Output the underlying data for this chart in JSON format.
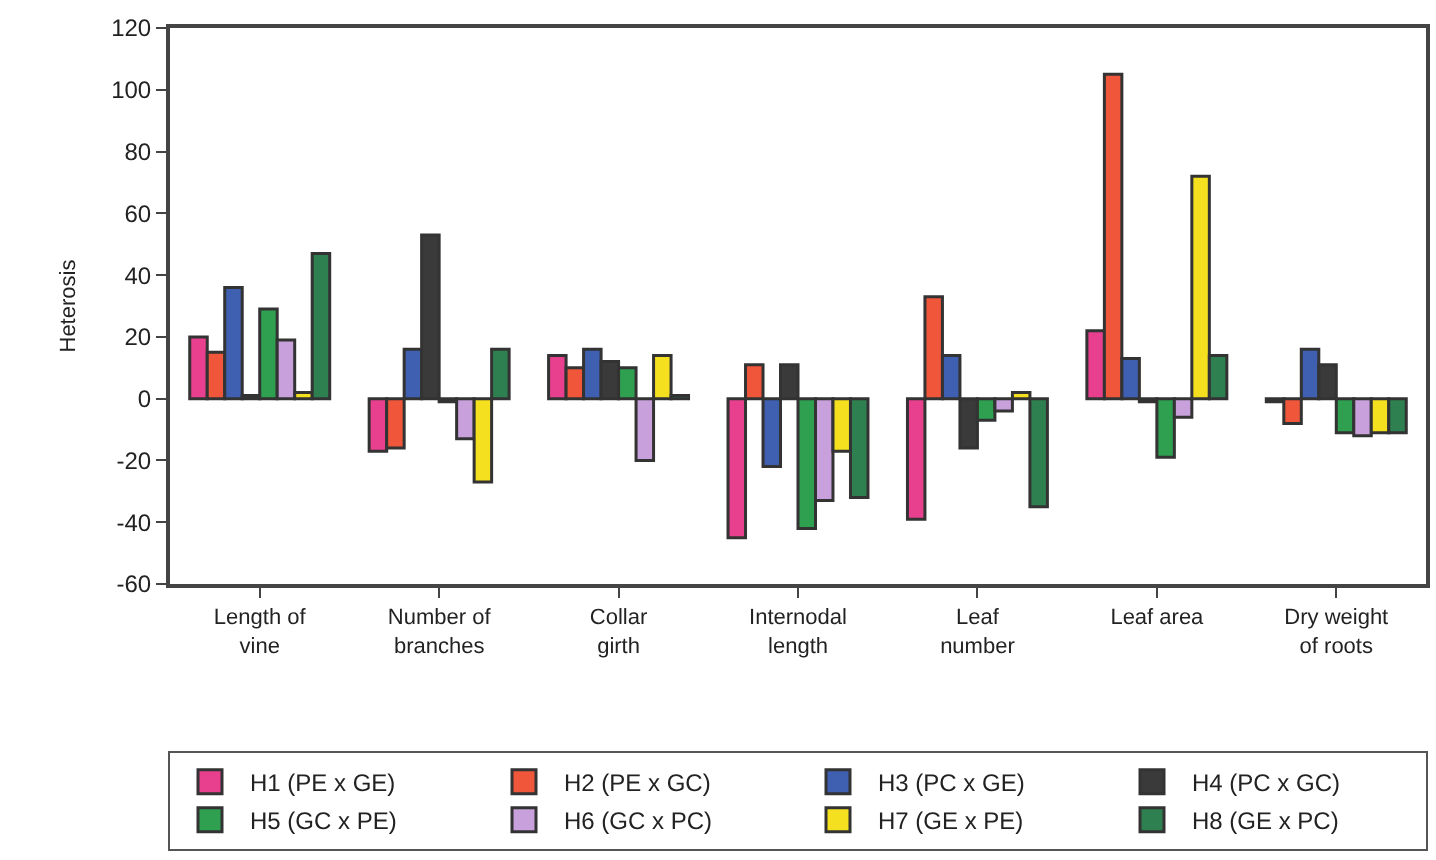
{
  "chart_data": {
    "type": "bar",
    "ylabel": "Heterosis",
    "categories": [
      "Length of vine",
      "Number of branches",
      "Collar girth",
      "Internodal length",
      "Leaf number",
      "Leaf area",
      "Dry weight of roots"
    ],
    "series": [
      {
        "name": "H1 (PE x GE)",
        "color": "#e8408f",
        "values": [
          20,
          -17,
          14,
          -45,
          -39,
          22,
          -1
        ]
      },
      {
        "name": "H2 (PE x GC)",
        "color": "#f0563a",
        "values": [
          15,
          -16,
          10,
          11,
          33,
          105,
          -8
        ]
      },
      {
        "name": "H3 (PC x GE)",
        "color": "#3f5fb0",
        "values": [
          36,
          16,
          16,
          -22,
          14,
          13,
          16
        ]
      },
      {
        "name": "H4 (PC x GC)",
        "color": "#3a3a3a",
        "values": [
          1,
          53,
          12,
          11,
          -16,
          -1,
          11
        ]
      },
      {
        "name": "H5 (GC x PE)",
        "color": "#2ea050",
        "values": [
          29,
          -1,
          10,
          -42,
          -7,
          -19,
          -11
        ]
      },
      {
        "name": "H6 (GC x PC)",
        "color": "#c8a0dc",
        "values": [
          19,
          -13,
          -20,
          -33,
          -4,
          -6,
          -12
        ]
      },
      {
        "name": "H7 (GE x PE)",
        "color": "#f5e020",
        "values": [
          2,
          -27,
          14,
          -17,
          2,
          72,
          -11
        ]
      },
      {
        "name": "H8 (GE x PC)",
        "color": "#2f8050",
        "values": [
          47,
          16,
          1,
          -32,
          -35,
          14,
          -11
        ]
      }
    ],
    "ylim": [
      -60,
      120
    ],
    "yticks": [
      -60,
      -40,
      -20,
      0,
      20,
      40,
      60,
      80,
      100,
      120
    ],
    "legend": "bottom"
  }
}
